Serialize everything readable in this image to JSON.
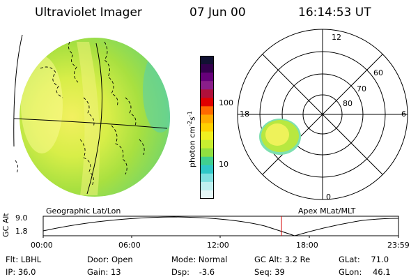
{
  "header": {
    "title": "Ultraviolet Imager",
    "date": "07 Jun 00",
    "time": "16:14:53 UT"
  },
  "colorbar": {
    "label": "photon cm",
    "label_sup1": "-2",
    "label_mid": "s",
    "label_sup2": "-1",
    "ticks": [
      "100",
      "10"
    ],
    "colors": [
      "#111133",
      "#33004d",
      "#66007a",
      "#8a1e8a",
      "#b0103a",
      "#e00000",
      "#ff6a00",
      "#ffaa00",
      "#ffd000",
      "#f0f020",
      "#c8ee30",
      "#90e040",
      "#40d090",
      "#30c8c8",
      "#80e0e0",
      "#c0f0f0",
      "#e6f8f8"
    ]
  },
  "left_panel": {
    "label": "Geographic Lat/Lon"
  },
  "polar_plot": {
    "label": "Apex MLat/MLT",
    "hour_labels": [
      "12",
      "6",
      "0",
      "18"
    ],
    "lat_labels": [
      "60",
      "70",
      "80"
    ]
  },
  "altitude_plot": {
    "ylabel": "GC Alt",
    "yticks": [
      "9.0",
      "1.8"
    ],
    "xticks": [
      "00:00",
      "06:00",
      "12:00",
      "18:00",
      "23:59"
    ],
    "current_time": "16:14:53"
  },
  "info_rows": [
    [
      {
        "label": "Flt:",
        "value": "LBHL"
      },
      {
        "label": "Door:",
        "value": "Open"
      },
      {
        "label": "Mode:",
        "value": "Normal"
      },
      {
        "label": "GC Alt:",
        "value": "3.2 Re"
      },
      {
        "label": "GLat:",
        "value": "71.0"
      }
    ],
    [
      {
        "label": "IP:",
        "value": "36.0"
      },
      {
        "label": "Gain:",
        "value": "13"
      },
      {
        "label": "Dsp:",
        "value": "-3.6"
      },
      {
        "label": "Seq:",
        "value": "39"
      },
      {
        "label": "GLon:",
        "value": "46.1"
      }
    ]
  ]
}
